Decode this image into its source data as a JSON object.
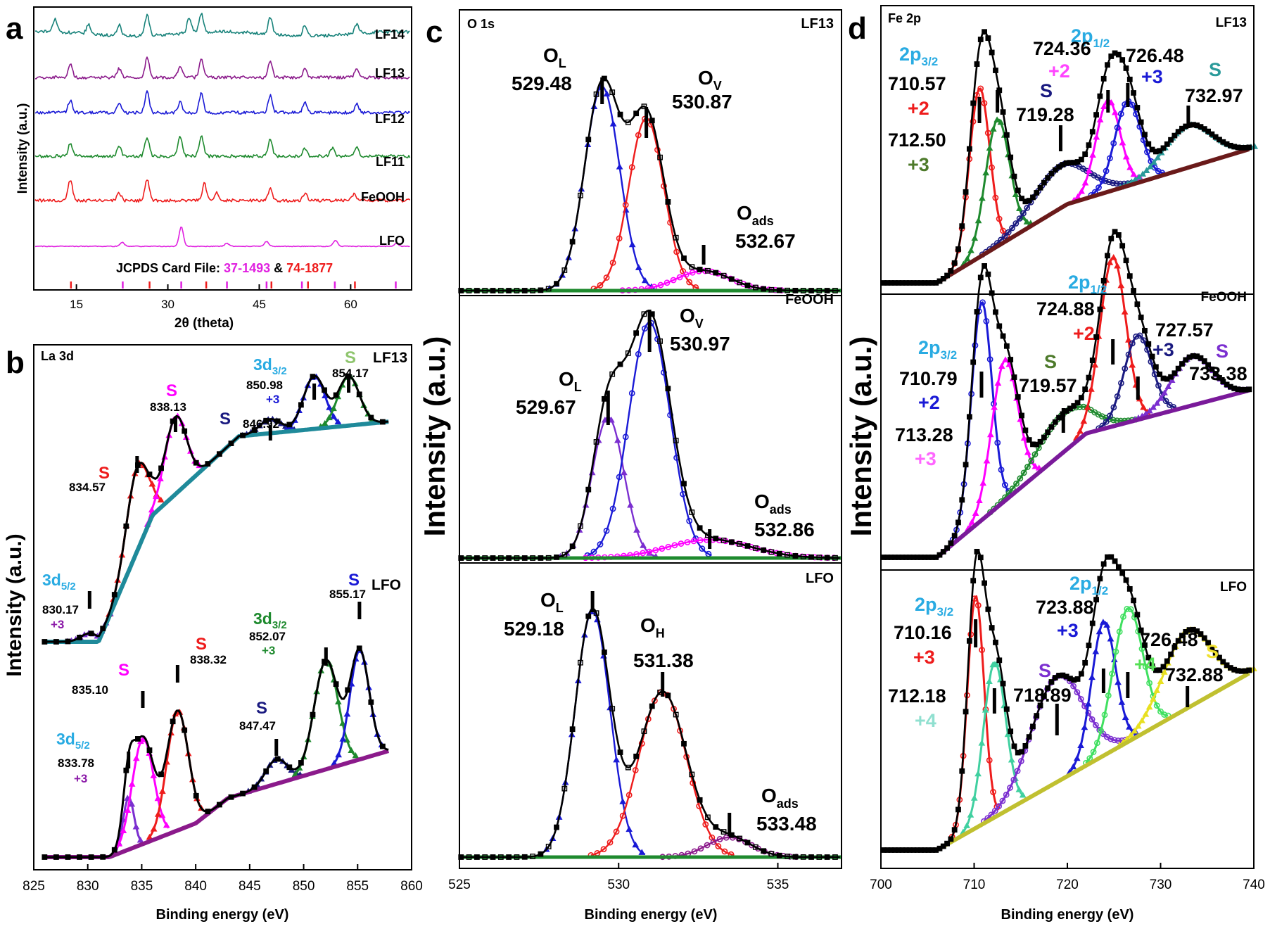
{
  "panels": [
    {
      "id": "a",
      "letter": "a",
      "chart_data": {
        "type": "line",
        "title": "",
        "xlabel": "2θ (theta)",
        "ylabel": "Intensity (a.u.)",
        "xlim": [
          8,
          70
        ],
        "xticks": [
          15,
          30,
          45,
          60
        ],
        "series": [
          {
            "name": "LF14",
            "color": "#17827a",
            "peaks": [
              [
                11.5,
                0.6
              ],
              [
                17,
                0.45
              ],
              [
                22,
                0.5
              ],
              [
                26.6,
                1
              ],
              [
                33.5,
                0.7
              ],
              [
                35.5,
                0.9
              ],
              [
                46.8,
                0.8
              ],
              [
                52.5,
                0.5
              ],
              [
                61,
                0.45
              ]
            ]
          },
          {
            "name": "LF13",
            "color": "#8b1a8b",
            "peaks": [
              [
                14,
                0.6
              ],
              [
                22,
                0.4
              ],
              [
                26.6,
                0.9
              ],
              [
                32,
                0.5
              ],
              [
                35.5,
                0.9
              ],
              [
                46.8,
                0.8
              ],
              [
                52.5,
                0.4
              ],
              [
                61,
                0.45
              ]
            ]
          },
          {
            "name": "LF12",
            "color": "#1a1ad6",
            "peaks": [
              [
                14,
                0.6
              ],
              [
                22,
                0.4
              ],
              [
                26.6,
                1
              ],
              [
                32,
                0.5
              ],
              [
                35.5,
                0.9
              ],
              [
                46.8,
                0.8
              ],
              [
                52.5,
                0.45
              ],
              [
                61,
                0.4
              ]
            ]
          },
          {
            "name": "LF11",
            "color": "#1e8a2e",
            "peaks": [
              [
                14,
                0.6
              ],
              [
                22,
                0.5
              ],
              [
                26.6,
                0.9
              ],
              [
                32,
                0.9
              ],
              [
                35.5,
                1
              ],
              [
                46.8,
                0.8
              ],
              [
                52.5,
                0.35
              ],
              [
                57,
                0.4
              ],
              [
                61,
                0.45
              ]
            ]
          },
          {
            "name": "FeOOH",
            "color": "#ee1c1c",
            "peaks": [
              [
                14,
                1
              ],
              [
                22,
                0.35
              ],
              [
                26.6,
                1
              ],
              [
                36,
                0.8
              ],
              [
                38,
                0.4
              ],
              [
                46.8,
                0.55
              ],
              [
                52.5,
                0.35
              ],
              [
                60.5,
                0.3
              ]
            ]
          },
          {
            "name": "LFO",
            "color": "#e020e0",
            "peaks": [
              [
                22.5,
                0.2
              ],
              [
                32.2,
                1
              ],
              [
                39.7,
                0.15
              ],
              [
                46.2,
                0.25
              ],
              [
                57.5,
                0.3
              ],
              [
                67.5,
                0.15
              ]
            ]
          }
        ],
        "annotations": [
          {
            "text": "JCPDS Card File: ",
            "color": "#000000"
          },
          {
            "text": "37-1493",
            "color": "#e020e0"
          },
          {
            "text": " & ",
            "color": "#000000"
          },
          {
            "text": "74-1877",
            "color": "#ee1c1c"
          }
        ],
        "ref_lines": {
          "37-1493": {
            "color": "#e020e0",
            "x": [
              22.6,
              32.2,
              39.7,
              46.2,
              52.0,
              57.4,
              67.4
            ]
          },
          "74-1877": {
            "color": "#ee1c1c",
            "x": [
              14.1,
              27.0,
              36.3,
              47.0,
              53.0,
              60.7
            ]
          }
        }
      }
    },
    {
      "id": "b",
      "letter": "b",
      "corner_label": "La 3d",
      "chart_data": {
        "type": "line",
        "xlabel": "Binding energy (eV)",
        "ylabel": "Intensity (a.u.)",
        "xlim": [
          825,
          860
        ],
        "xticks": [
          825,
          830,
          835,
          840,
          845,
          850,
          855,
          860
        ],
        "spectra": [
          {
            "name": "LF13",
            "envelope_color": "#000000",
            "background_color": "#1f8a9a",
            "components": [
              {
                "label": "S",
                "center": 834.57,
                "color": "#ee1c1c"
              },
              {
                "label": "S",
                "center": 838.13,
                "color": "#ff00ff"
              },
              {
                "label": "3d5/2 +3",
                "center": 830.17,
                "color": "#7b2fd0"
              },
              {
                "label": "S",
                "center": 846.92,
                "color": "#1a1a80"
              },
              {
                "label": "3d3/2 +3",
                "center": 850.98,
                "color": "#1a1ad6"
              },
              {
                "label": "S",
                "center": 854.17,
                "color": "#1e8a2e"
              }
            ]
          },
          {
            "name": "LFO",
            "envelope_color": "#000000",
            "background_color": "#8b1a8b",
            "components": [
              {
                "label": "3d5/2 +3",
                "center": 833.78,
                "color": "#7b2fd0"
              },
              {
                "label": "S",
                "center": 835.1,
                "color": "#ff00ff"
              },
              {
                "label": "S",
                "center": 838.32,
                "color": "#ee1c1c"
              },
              {
                "label": "S",
                "center": 847.47,
                "color": "#1a1a80"
              },
              {
                "label": "3d3/2 +3",
                "center": 852.07,
                "color": "#1e8a2e"
              },
              {
                "label": "S",
                "center": 855.17,
                "color": "#1a1ad6"
              }
            ]
          }
        ]
      }
    },
    {
      "id": "c",
      "letter": "c",
      "corner_label": "O 1s",
      "chart_data": {
        "type": "line",
        "xlabel": "Binding energy (eV)",
        "ylabel": "Intensity (a.u.)",
        "xlim": [
          525,
          537
        ],
        "xticks": [
          525,
          530,
          535
        ],
        "spectra": [
          {
            "name": "LF13",
            "components": [
              {
                "label": "OL",
                "center": 529.48,
                "color": "#1a1ad6"
              },
              {
                "label": "Ov",
                "center": 530.87,
                "color": "#ee1c1c"
              },
              {
                "label": "Oads",
                "center": 532.67,
                "color": "#ff00ff"
              }
            ]
          },
          {
            "name": "FeOOH",
            "components": [
              {
                "label": "OL",
                "center": 529.67,
                "color": "#7b2fd0"
              },
              {
                "label": "Ov",
                "center": 530.97,
                "color": "#1a1ad6"
              },
              {
                "label": "Oads",
                "center": 532.86,
                "color": "#ff00ff"
              }
            ]
          },
          {
            "name": "LFO",
            "components": [
              {
                "label": "OL",
                "center": 529.18,
                "color": "#1a1ad6"
              },
              {
                "label": "OH",
                "center": 531.38,
                "color": "#ee1c1c"
              },
              {
                "label": "Oads",
                "center": 533.48,
                "color": "#8b1a8b"
              }
            ]
          }
        ]
      }
    },
    {
      "id": "d",
      "letter": "d",
      "corner_label": "Fe 2p",
      "chart_data": {
        "type": "line",
        "xlabel": "Binding energy (eV)",
        "ylabel": "Intensity (a.u.)",
        "xlim": [
          700,
          740
        ],
        "xticks": [
          700,
          710,
          720,
          730,
          740
        ],
        "spectra": [
          {
            "name": "LF13",
            "components": [
              {
                "label": "2p3/2 +2",
                "center": 710.57,
                "color": "#ee1c1c"
              },
              {
                "label": "+3",
                "center": 712.5,
                "color": "#1e8a2e"
              },
              {
                "label": "S",
                "center": 719.28,
                "color": "#1a1a80"
              },
              {
                "label": "2p1/2 +2",
                "center": 724.36,
                "color": "#ff00ff"
              },
              {
                "label": "+3",
                "center": 726.48,
                "color": "#1a1ad6"
              },
              {
                "label": "S",
                "center": 732.97,
                "color": "#2a9a9a"
              }
            ]
          },
          {
            "name": "FeOOH",
            "components": [
              {
                "label": "2p3/2 +2",
                "center": 710.79,
                "color": "#1a1ad6"
              },
              {
                "label": "+3",
                "center": 713.28,
                "color": "#ff00ff"
              },
              {
                "label": "S",
                "center": 719.57,
                "color": "#1e8a2e"
              },
              {
                "label": "2p1/2 +2",
                "center": 724.88,
                "color": "#ee1c1c"
              },
              {
                "label": "+3",
                "center": 727.57,
                "color": "#1a1a80"
              },
              {
                "label": "S",
                "center": 733.38,
                "color": "#7b2fd0"
              }
            ]
          },
          {
            "name": "LFO",
            "components": [
              {
                "label": "2p3/2 +3",
                "center": 710.16,
                "color": "#ee1c1c"
              },
              {
                "label": "+4",
                "center": 712.18,
                "color": "#40d0a0"
              },
              {
                "label": "S",
                "center": 718.89,
                "color": "#7b2fd0"
              },
              {
                "label": "2p1/2 +3",
                "center": 723.88,
                "color": "#1a1ad6"
              },
              {
                "label": "+4",
                "center": 726.48,
                "color": "#40e060"
              },
              {
                "label": "S",
                "center": 732.88,
                "color": "#e8e020"
              }
            ]
          }
        ]
      }
    }
  ],
  "labels": {
    "a_letter": "a",
    "b_letter": "b",
    "c_letter": "c",
    "d_letter": "d",
    "a_ylabel": "Intensity (a.u.)",
    "a_xlabel_2": "2",
    "a_xlabel_theta": "θ (theta)",
    "b_ylabel": "Intensity (a.u.)",
    "c_ylabel": "Intensity (a.u.)",
    "d_ylabel": "Intensity (a.u.)",
    "xlabel": "Binding energy (eV)",
    "b_corner": "La 3d",
    "c_corner": "O 1s",
    "d_corner": "Fe 2p",
    "LF14": "LF14",
    "LF13": "LF13",
    "LF12": "LF12",
    "LF11": "LF11",
    "FeOOH": "FeOOH",
    "LFO": "LFO",
    "jcpds_a": "JCPDS Card File: ",
    "jcpds_b": "37-1493",
    "jcpds_c": " & ",
    "jcpds_d": "74-1877",
    "S": "S",
    "plus2": "+2",
    "plus3": "+3",
    "plus4": "+4",
    "3d": "3d",
    "sub52": "5/2",
    "sub32": "3/2",
    "2p": "2p",
    "sub12": "1/2",
    "O": "O",
    "subL": "L",
    "subV": "V",
    "subH": "H",
    "subads": "ads",
    "b_834_57": "834.57",
    "b_838_13": "838.13",
    "b_846_92": "846.92",
    "b_850_98": "850.98",
    "b_854_17": "854.17",
    "b_830_17": "830.17",
    "b_835_10": "835.10",
    "b_838_32": "838.32",
    "b_833_78": "833.78",
    "b_847_47": "847.47",
    "b_852_07": "852.07",
    "b_855_17": "855.17",
    "c_529_48": "529.48",
    "c_530_87": "530.87",
    "c_532_67": "532.67",
    "c_529_67": "529.67",
    "c_530_97": "530.97",
    "c_532_86": "532.86",
    "c_529_18": "529.18",
    "c_531_38": "531.38",
    "c_533_48": "533.48",
    "d_710_57": "710.57",
    "d_712_50": "712.50",
    "d_719_28": "719.28",
    "d_724_36": "724.36",
    "d_726_48": "726.48",
    "d_732_97": "732.97",
    "d_710_79": "710.79",
    "d_713_28": "713.28",
    "d_719_57": "719.57",
    "d_724_88": "724.88",
    "d_727_57": "727.57",
    "d_733_38": "733.38",
    "d_710_16": "710.16",
    "d_712_18": "712.18",
    "d_718_89": "718.89",
    "d_723_88": "723.88",
    "d_726_48b": "726.48",
    "d_732_88": "732.88"
  }
}
